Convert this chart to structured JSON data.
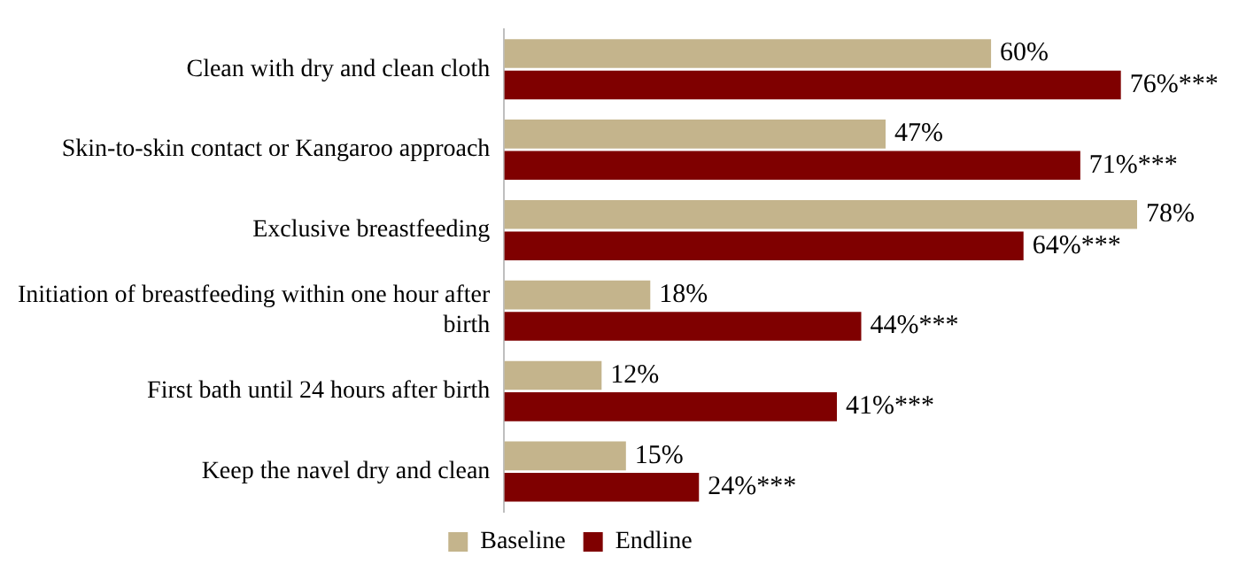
{
  "chart_data": {
    "type": "bar",
    "orientation": "horizontal",
    "categories": [
      "Clean with dry and clean cloth",
      "Skin-to-skin contact or Kangaroo approach",
      "Exclusive breastfeeding",
      "Initiation of breastfeeding within one hour after birth",
      "First bath until 24 hours after birth",
      "Keep the navel dry and clean"
    ],
    "series": [
      {
        "name": "Baseline",
        "color": "#c4b48c",
        "values": [
          60,
          47,
          78,
          18,
          12,
          15
        ],
        "value_labels": [
          "60%",
          "47%",
          "78%",
          "18%",
          "12%",
          "15%"
        ]
      },
      {
        "name": "Endline",
        "color": "#7f0000",
        "values": [
          76,
          71,
          64,
          44,
          41,
          24
        ],
        "value_labels": [
          "76%***",
          "71%***",
          "64%***",
          "44%***",
          "41%***",
          "24%***"
        ]
      }
    ],
    "legend": "bottom",
    "grid": false
  }
}
